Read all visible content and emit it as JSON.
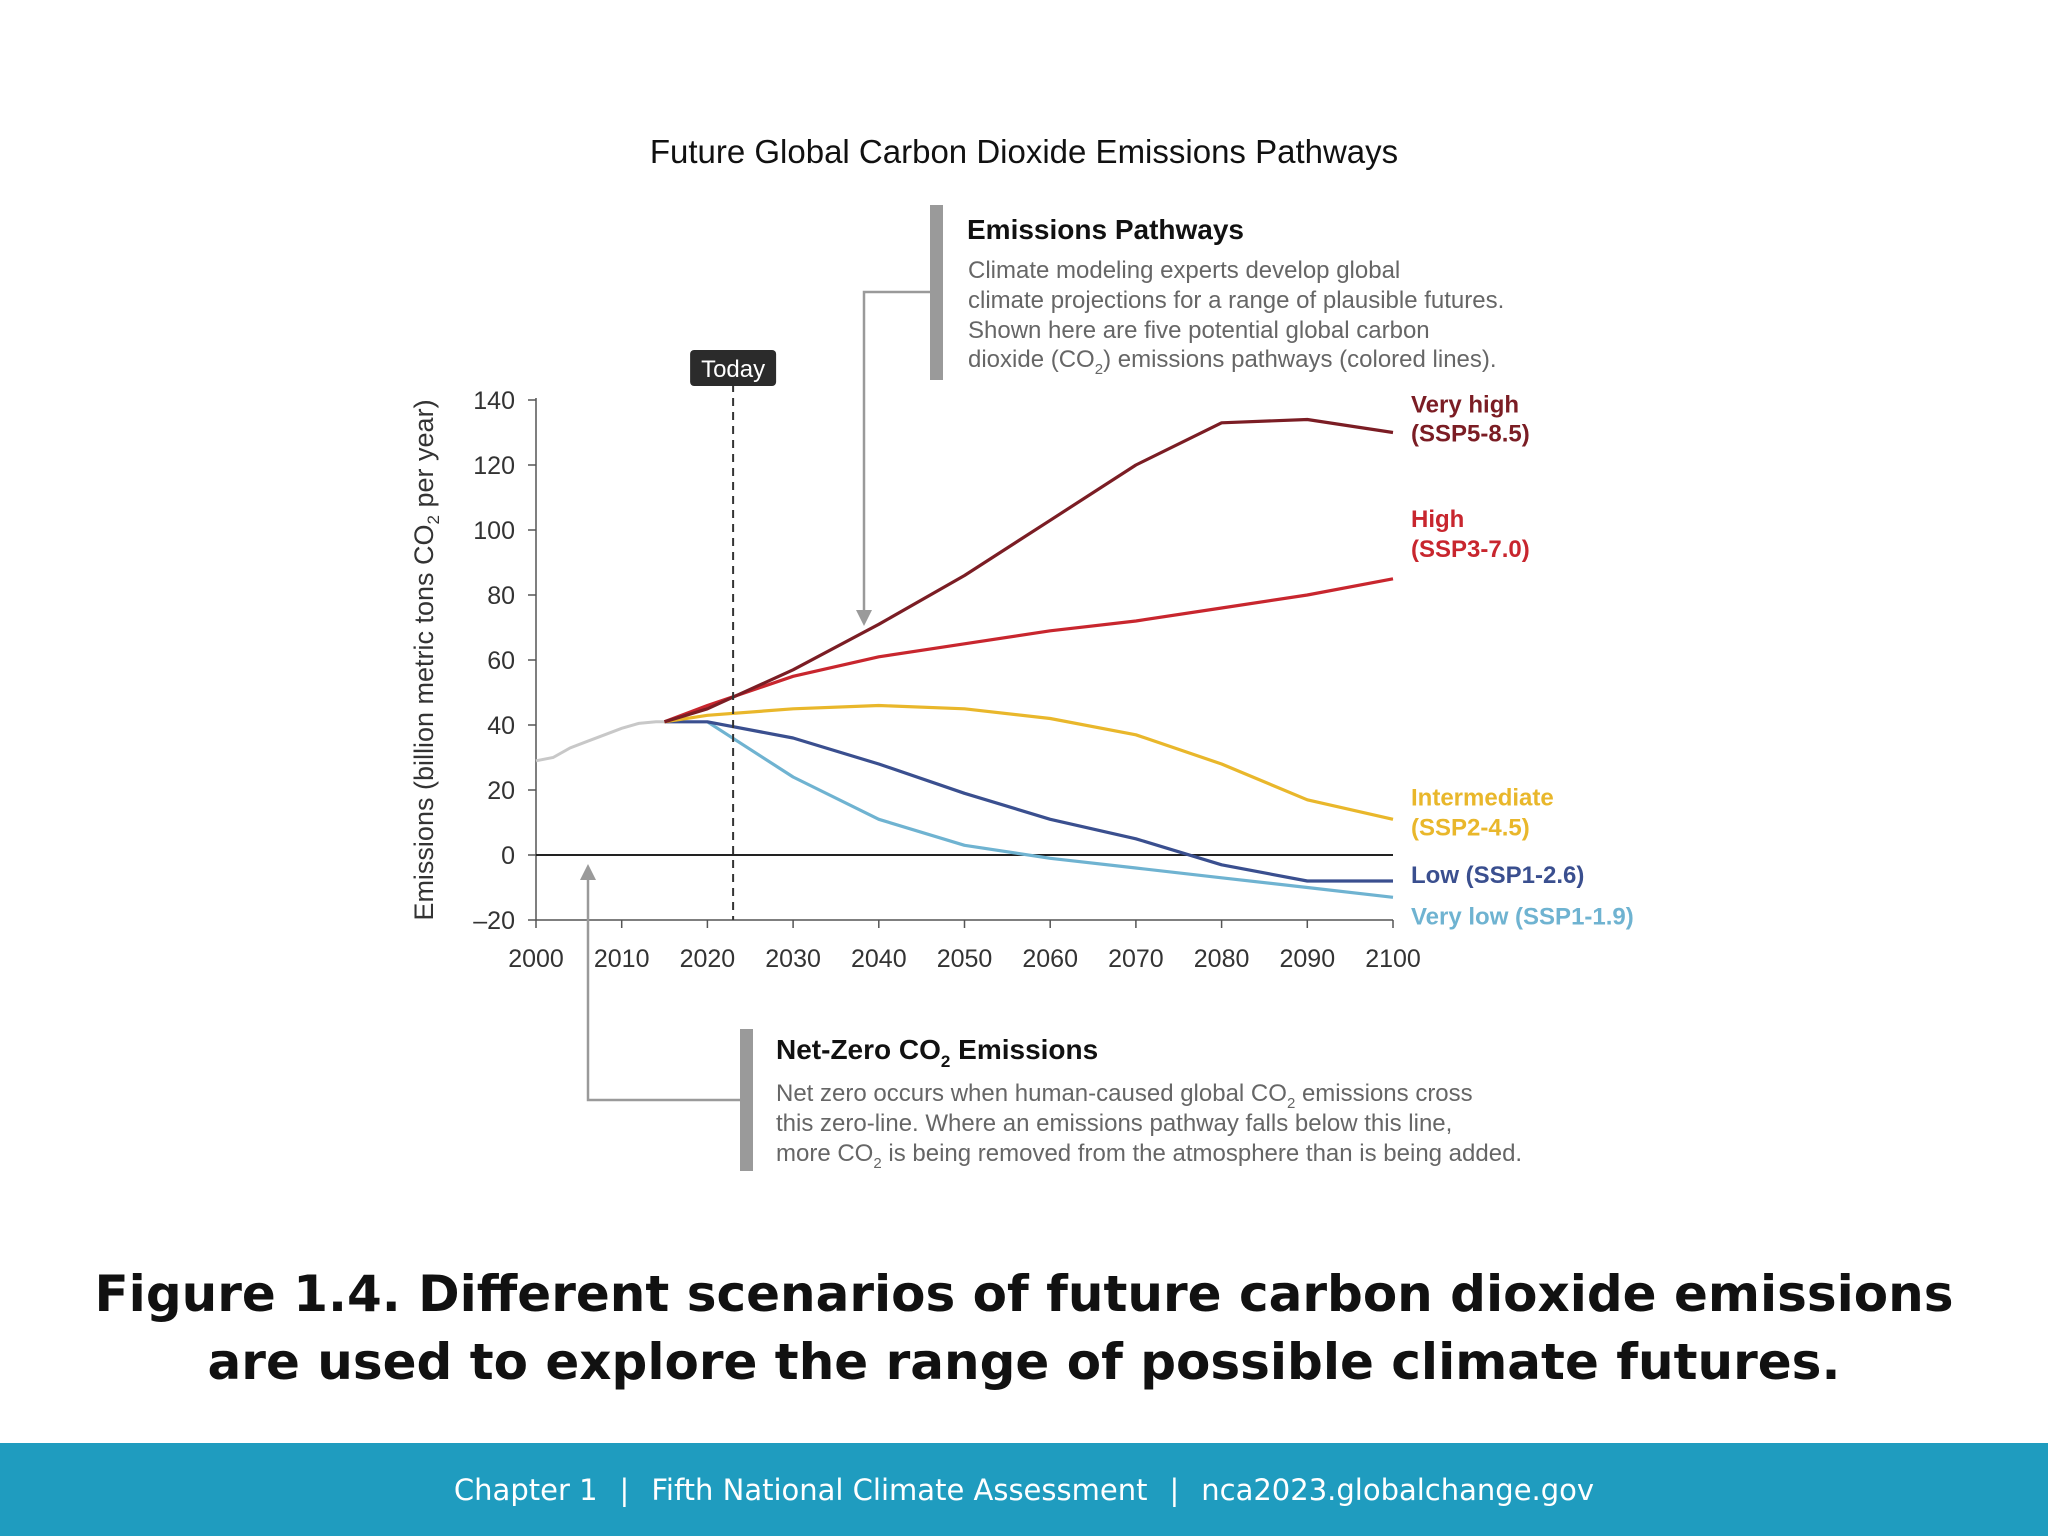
{
  "chart_data": {
    "type": "line",
    "title": "Future Global Carbon Dioxide Emissions Pathways",
    "ylabel": "Emissions (billion metric tons CO2 per year)",
    "xlabel": "",
    "xlim": [
      2000,
      2100
    ],
    "ylim": [
      -20,
      140
    ],
    "xticks": [
      "2000",
      "2010",
      "2020",
      "2030",
      "2040",
      "2050",
      "2060",
      "2070",
      "2080",
      "2090",
      "2100"
    ],
    "yticks": [
      "140",
      "120",
      "100",
      "80",
      "60",
      "40",
      "20",
      "0",
      "–20"
    ],
    "today_label": "Today",
    "today_year": 2023,
    "historical": {
      "color": "#c8c8c8",
      "x": [
        2000,
        2002,
        2004,
        2006,
        2008,
        2010,
        2012,
        2014,
        2015
      ],
      "y": [
        29,
        30,
        33,
        35,
        37,
        39,
        40.5,
        41,
        41
      ]
    },
    "series": [
      {
        "name": "Very high",
        "name_line2": "(SSP5-8.5)",
        "color": "#7b1d24",
        "x": [
          2015,
          2020,
          2030,
          2040,
          2050,
          2060,
          2070,
          2080,
          2090,
          2100
        ],
        "y": [
          41,
          45,
          57,
          71,
          86,
          103,
          120,
          133,
          134,
          130
        ]
      },
      {
        "name": "High",
        "name_line2": "(SSP3-7.0)",
        "color": "#c8262e",
        "x": [
          2015,
          2020,
          2030,
          2040,
          2050,
          2060,
          2070,
          2080,
          2090,
          2100
        ],
        "y": [
          41,
          46,
          55,
          61,
          65,
          69,
          72,
          76,
          80,
          85
        ]
      },
      {
        "name": "Intermediate",
        "name_line2": "(SSP2-4.5)",
        "color": "#e9b72b",
        "x": [
          2015,
          2020,
          2030,
          2040,
          2050,
          2060,
          2070,
          2080,
          2090,
          2100
        ],
        "y": [
          41,
          43,
          45,
          46,
          45,
          42,
          37,
          28,
          17,
          11
        ]
      },
      {
        "name": "Low (SSP1-2.6)",
        "name_line2": "",
        "color": "#3a4f8f",
        "x": [
          2015,
          2020,
          2030,
          2040,
          2050,
          2060,
          2070,
          2080,
          2090,
          2100
        ],
        "y": [
          41,
          41,
          36,
          28,
          19,
          11,
          5,
          -3,
          -8,
          -8
        ]
      },
      {
        "name": "Very low (SSP1-1.9)",
        "name_line2": "",
        "color": "#6fb3d1",
        "x": [
          2020,
          2030,
          2040,
          2050,
          2060,
          2070,
          2080,
          2090,
          2100
        ],
        "y": [
          41,
          24,
          11,
          3,
          -1,
          -4,
          -7,
          -10,
          -13
        ]
      }
    ],
    "grid": false,
    "legend": "right, labels at line ends"
  },
  "annotations": {
    "pathways_title": "Emissions Pathways",
    "pathways_lines": [
      "Climate modeling experts develop global",
      "climate projections for a range of plausible futures.",
      "Shown here are five potential global carbon",
      "dioxide (CO",
      "2",
      ") emissions pathways (colored lines)."
    ],
    "netzero_title_part1": "Net-Zero CO",
    "netzero_title_sub": "2",
    "netzero_title_part2": " Emissions",
    "netzero_line1_a": "Net zero occurs when human-caused global CO",
    "netzero_line1_sub": "2",
    "netzero_line1_b": " emissions cross",
    "netzero_line2": "this zero-line. Where an emissions pathway falls below this line,",
    "netzero_line3_a": "more CO",
    "netzero_line3_sub": "2",
    "netzero_line3_b": " is being removed from the atmosphere than is being added."
  },
  "caption": {
    "line1": "Figure 1.4. Different scenarios of future carbon dioxide emissions",
    "line2": "are used to explore the range of possible climate futures."
  },
  "footer": {
    "part1": "Chapter 1",
    "sep1": "|",
    "part2": "Fifth National Climate Assessment",
    "sep2": "|",
    "part3": "nca2023.globalchange.gov"
  },
  "colors": {
    "footer_bg": "#1f9cbf",
    "annotation_bar": "#9a9a9a",
    "axis": "#555555"
  }
}
